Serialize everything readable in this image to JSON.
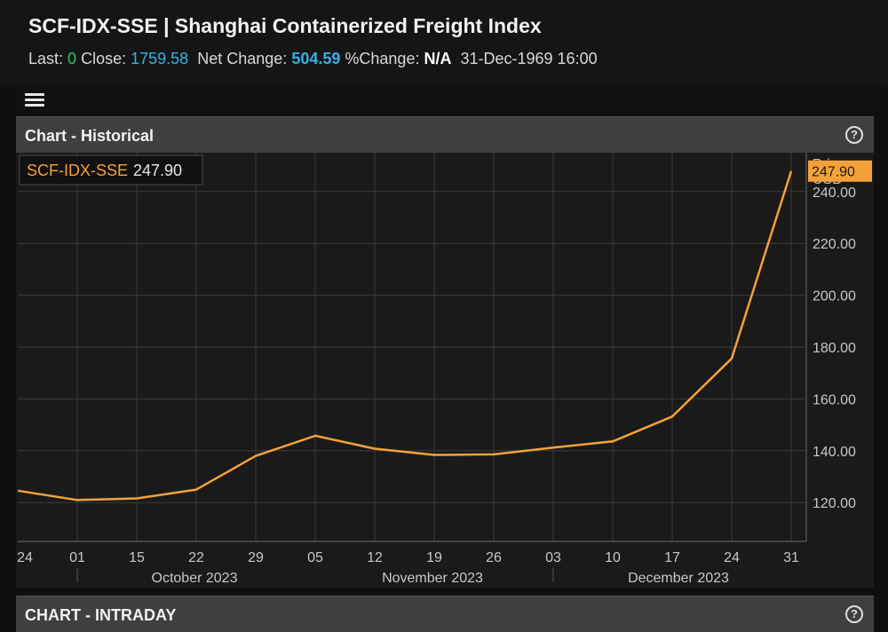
{
  "header": {
    "title": "SCF-IDX-SSE | Shanghai Containerized Freight Index",
    "last_label": "Last:",
    "last_value": "0",
    "close_label": "Close:",
    "close_value": "1759.58",
    "net_label": "Net Change:",
    "net_value": "504.59",
    "pct_label": "%Change:",
    "pct_value": "N/A",
    "datetime": "31-Dec-1969 16:00"
  },
  "panels": {
    "historical_title": "Chart - Historical",
    "intraday_title": "CHART - INTRADAY"
  },
  "colors": {
    "line": "#f5a13a",
    "last_badge": "#f5a13a",
    "grid": "#3a3a3a"
  },
  "chart_data": {
    "type": "line",
    "legend": {
      "name": "SCF-IDX-SSE",
      "value": "247.90"
    },
    "last_value_label": "247.90",
    "ylabel": "Price USD",
    "ylabel_lines": [
      "Price",
      "USD"
    ],
    "ylim": [
      105,
      255
    ],
    "yticks": [
      120,
      140,
      160,
      180,
      200,
      220,
      240
    ],
    "ytick_labels": [
      "120.00",
      "140.00",
      "160.00",
      "180.00",
      "200.00",
      "220.00",
      "240.00"
    ],
    "x": [
      "24",
      "01",
      "15",
      "22",
      "29",
      "05",
      "12",
      "19",
      "26",
      "03",
      "10",
      "17",
      "24",
      "31"
    ],
    "values": [
      124.6,
      121.0,
      121.6,
      125.0,
      138.0,
      145.8,
      140.8,
      138.4,
      138.6,
      141.2,
      143.6,
      153.2,
      175.6,
      247.9
    ],
    "months": [
      {
        "label": "October 2023"
      },
      {
        "label": "November 2023"
      },
      {
        "label": "December 2023"
      }
    ]
  }
}
